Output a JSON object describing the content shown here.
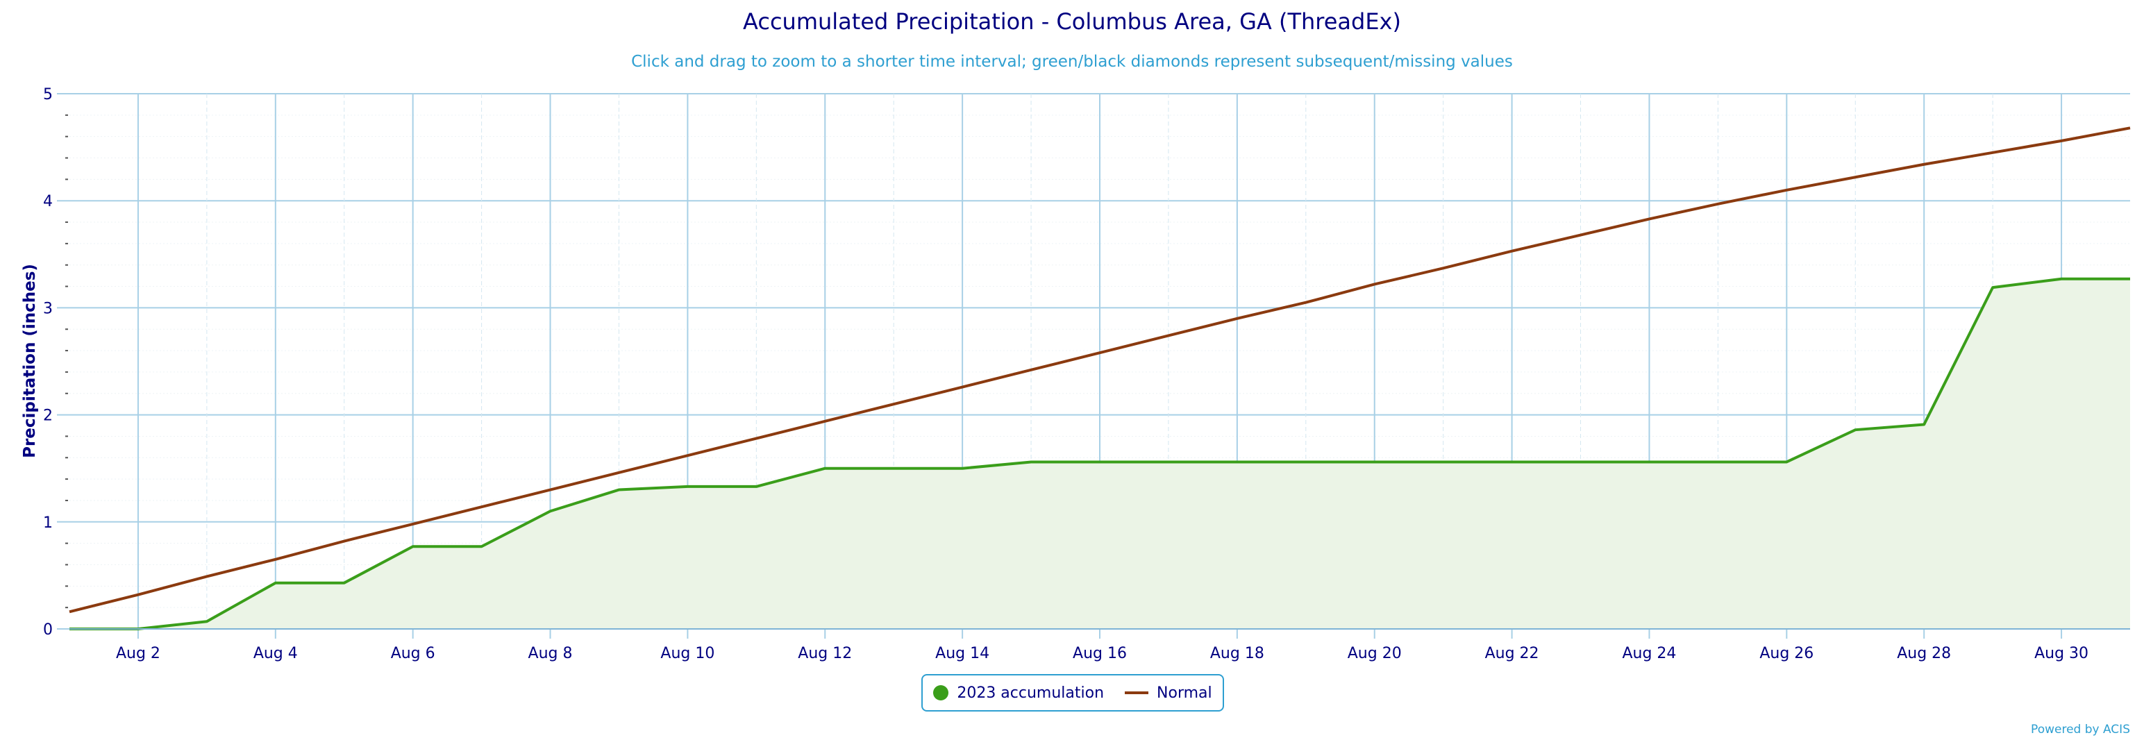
{
  "title": "Accumulated Precipitation - Columbus Area, GA (ThreadEx)",
  "subtitle": "Click and drag to zoom to a shorter time interval; green/black diamonds represent subsequent/missing values",
  "credits": "Powered by ACIS",
  "colors": {
    "accum": "#3a9e1a",
    "accum_fill": "#ebf4e6",
    "normal": "#8b3a0f",
    "grid": "#a8d0e6",
    "axis_text": "#000080",
    "accent": "#2e9fd1"
  },
  "chart_data": {
    "type": "area",
    "title": "Accumulated Precipitation - Columbus Area, GA (ThreadEx)",
    "subtitle": "Click and drag to zoom to a shorter time interval; green/black diamonds represent subsequent/missing values",
    "xlabel": "",
    "ylabel": "Precipitation (inches)",
    "xlim": [
      "2023-08-01",
      "2023-08-31"
    ],
    "ylim": [
      0,
      5
    ],
    "yticks": [
      0,
      1,
      2,
      3,
      4,
      5
    ],
    "xticks": [
      "Aug 2",
      "Aug 4",
      "Aug 6",
      "Aug 8",
      "Aug 10",
      "Aug 12",
      "Aug 14",
      "Aug 16",
      "Aug 18",
      "Aug 20",
      "Aug 22",
      "Aug 24",
      "Aug 26",
      "Aug 28",
      "Aug 30"
    ],
    "x": [
      "2023-08-01",
      "2023-08-02",
      "2023-08-03",
      "2023-08-04",
      "2023-08-05",
      "2023-08-06",
      "2023-08-07",
      "2023-08-08",
      "2023-08-09",
      "2023-08-10",
      "2023-08-11",
      "2023-08-12",
      "2023-08-13",
      "2023-08-14",
      "2023-08-15",
      "2023-08-16",
      "2023-08-17",
      "2023-08-18",
      "2023-08-19",
      "2023-08-20",
      "2023-08-21",
      "2023-08-22",
      "2023-08-23",
      "2023-08-24",
      "2023-08-25",
      "2023-08-26",
      "2023-08-27",
      "2023-08-28",
      "2023-08-29",
      "2023-08-30",
      "2023-08-31"
    ],
    "series": [
      {
        "name": "2023 accumulation",
        "type": "area",
        "values": [
          0.0,
          0.0,
          0.07,
          0.43,
          0.43,
          0.77,
          0.77,
          1.1,
          1.3,
          1.33,
          1.33,
          1.5,
          1.5,
          1.5,
          1.56,
          1.56,
          1.56,
          1.56,
          1.56,
          1.56,
          1.56,
          1.56,
          1.56,
          1.56,
          1.56,
          1.56,
          1.86,
          1.91,
          3.19,
          3.27,
          3.27
        ]
      },
      {
        "name": "Normal",
        "type": "line",
        "values": [
          0.16,
          0.32,
          0.49,
          0.65,
          0.82,
          0.98,
          1.14,
          1.3,
          1.46,
          1.62,
          1.78,
          1.94,
          2.1,
          2.26,
          2.42,
          2.58,
          2.74,
          2.9,
          3.05,
          3.22,
          3.37,
          3.53,
          3.68,
          3.83,
          3.97,
          4.1,
          4.22,
          4.34,
          4.45,
          4.56,
          4.68
        ]
      }
    ],
    "grid": true,
    "legend": "bottom-center"
  }
}
